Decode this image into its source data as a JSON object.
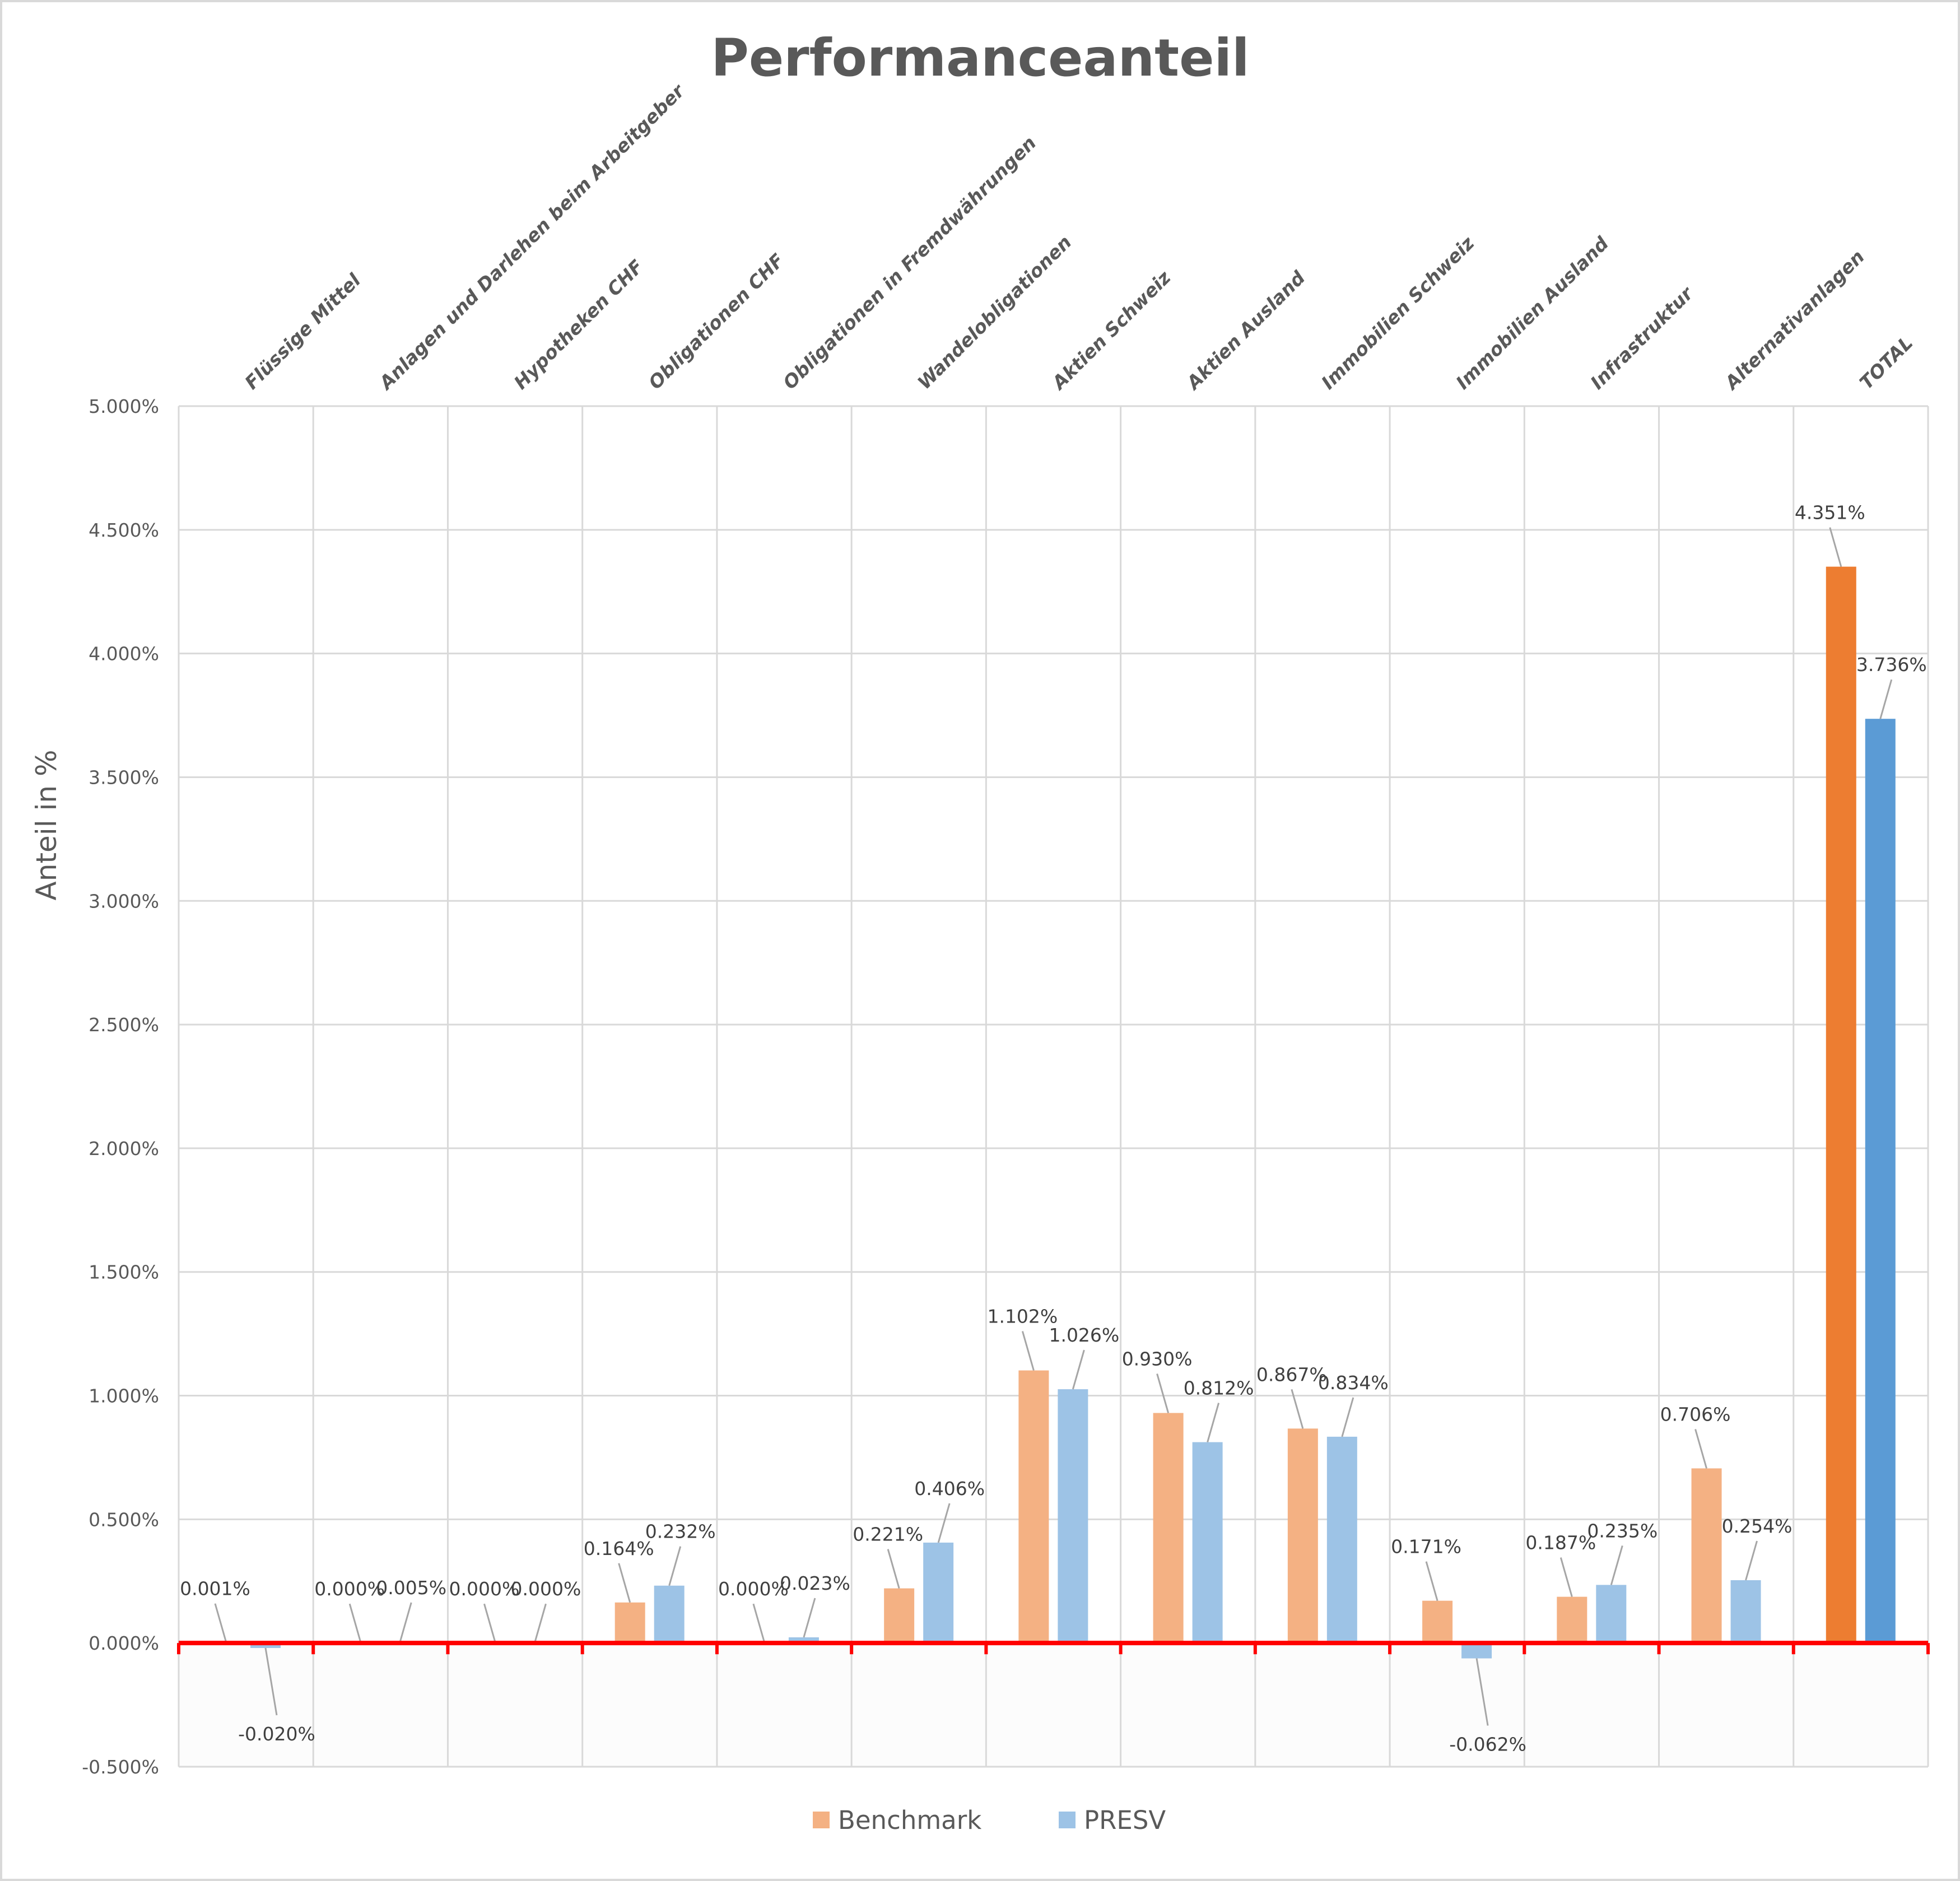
{
  "chart_data": {
    "type": "bar",
    "title": "Performanceanteil",
    "xlabel": "",
    "ylabel": "Anteil in %",
    "ylim": [
      -0.5,
      5.0
    ],
    "yticks": [
      -0.5,
      0,
      0.5,
      1.0,
      1.5,
      2.0,
      2.5,
      3.0,
      3.5,
      4.0,
      4.5,
      5.0
    ],
    "ytick_labels": [
      "-0.500%",
      "0.000%",
      "0.500%",
      "1.000%",
      "1.500%",
      "2.000%",
      "2.500%",
      "3.000%",
      "3.500%",
      "4.000%",
      "4.500%",
      "5.000%"
    ],
    "grid": true,
    "legend_position": "bottom",
    "categories": [
      "Flüssige Mittel",
      "Anlagen und Darlehen beim Arbeitgeber",
      "Hypotheken CHF",
      "Obligationen CHF",
      "Obligationen in Fremdwährungen",
      "Wandelobligationen",
      "Aktien Schweiz",
      "Aktien Ausland",
      "Immobilien Schweiz",
      "Immobilien Ausland",
      "Infrastruktur",
      "Alternativanlagen",
      "TOTAL"
    ],
    "series": [
      {
        "name": "Benchmark",
        "color": "#F4B183",
        "highlight_color": "#ED7D31",
        "values": [
          0.001,
          0.0,
          0.0,
          0.164,
          0.0,
          0.221,
          1.102,
          0.93,
          0.867,
          0.171,
          0.187,
          0.706,
          4.351
        ],
        "labels": [
          "0.001%",
          "0.000%",
          "0.000%",
          "0.164%",
          "0.000%",
          "0.221%",
          "1.102%",
          "0.930%",
          "0.867%",
          "0.171%",
          "0.187%",
          "0.706%",
          "4.351%"
        ]
      },
      {
        "name": "PRESV",
        "color": "#9DC3E6",
        "highlight_color": "#5B9BD5",
        "values": [
          -0.02,
          0.005,
          0.0,
          0.232,
          0.023,
          0.406,
          1.026,
          0.812,
          0.834,
          -0.062,
          0.235,
          0.254,
          3.736
        ],
        "labels": [
          "-0.020%",
          "0.005%",
          "0.000%",
          "0.232%",
          "0.023%",
          "0.406%",
          "1.026%",
          "0.812%",
          "0.834%",
          "-0.062%",
          "0.235%",
          "0.254%",
          "3.736%"
        ]
      }
    ],
    "zero_line_color": "#FF0000"
  }
}
